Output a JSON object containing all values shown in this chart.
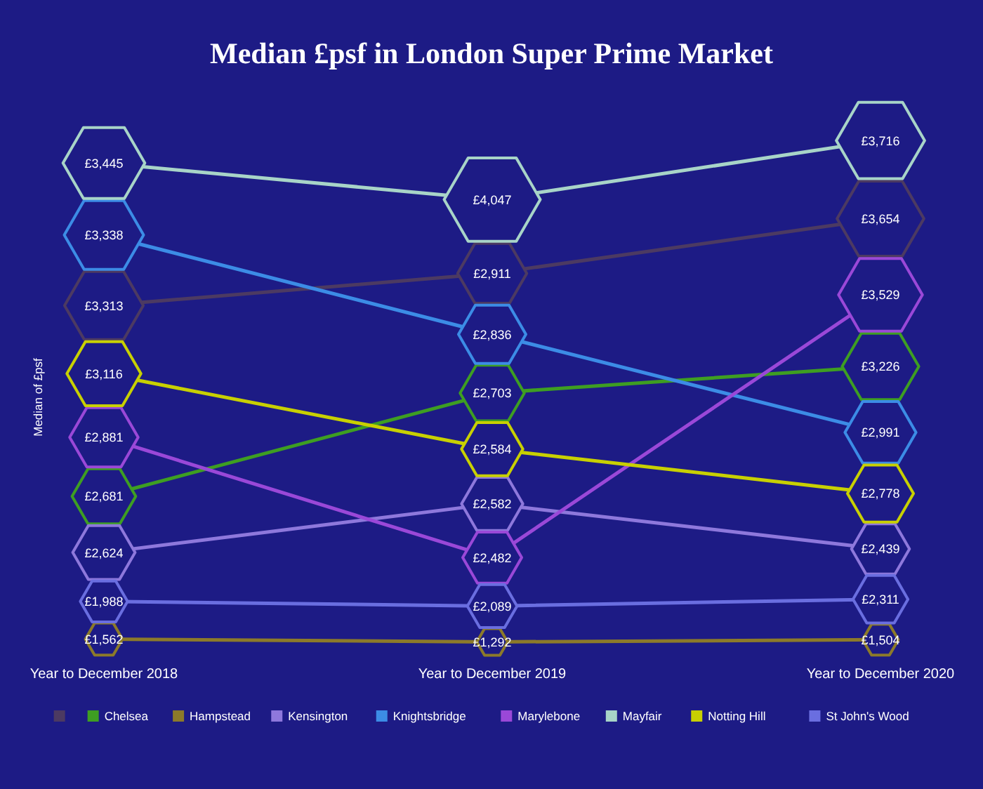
{
  "chart_data": {
    "type": "other",
    "title": "Median £psf in London Super Prime Market",
    "ylabel": "Median of £psf",
    "categories": [
      "Year to December 2018",
      "Year to December 2019",
      "Year to December 2020"
    ],
    "series": [
      {
        "color": "#4c3a62",
        "values": [
          3313,
          2911,
          3654
        ],
        "value_labels": [
          "£3,313",
          "£2,911",
          "£3,654"
        ]
      },
      {
        "name": "Chelsea",
        "color": "#3e9e22",
        "values": [
          2681,
          2703,
          3226
        ],
        "value_labels": [
          "£2,681",
          "£2,703",
          "£3,226"
        ]
      },
      {
        "name": "Hampstead",
        "color": "#8c7a2a",
        "values": [
          1562,
          1292,
          1504
        ],
        "value_labels": [
          "£1,562",
          "£1,292",
          "£1,504"
        ]
      },
      {
        "name": "Kensington",
        "color": "#8e78dc",
        "values": [
          2624,
          2582,
          2439
        ],
        "value_labels": [
          "£2,624",
          "£2,582",
          "£2,439"
        ]
      },
      {
        "name": "Knightsbridge",
        "color": "#3c8ce6",
        "values": [
          3338,
          2836,
          2991
        ],
        "value_labels": [
          "£3,338",
          "£2,836",
          "£2,991"
        ]
      },
      {
        "name": "Marylebone",
        "color": "#9a48d8",
        "values": [
          2881,
          2482,
          3529
        ],
        "value_labels": [
          "£2,881",
          "£2,482",
          "£3,529"
        ]
      },
      {
        "name": "Mayfair",
        "color": "#a8d4c8",
        "values": [
          3445,
          4047,
          3716
        ],
        "value_labels": [
          "£3,445",
          "£4,047",
          "£3,716"
        ]
      },
      {
        "name": "Notting Hill",
        "color": "#c8d000",
        "values": [
          3116,
          2584,
          2778
        ],
        "value_labels": [
          "£3,116",
          "£2,584",
          "£2,778"
        ]
      },
      {
        "name": "St John's Wood",
        "color": "#6a6ee0",
        "values": [
          1988,
          2089,
          2311
        ],
        "value_labels": [
          "£1,988",
          "£2,089",
          "£2,311"
        ]
      }
    ],
    "legend": "bottom"
  }
}
